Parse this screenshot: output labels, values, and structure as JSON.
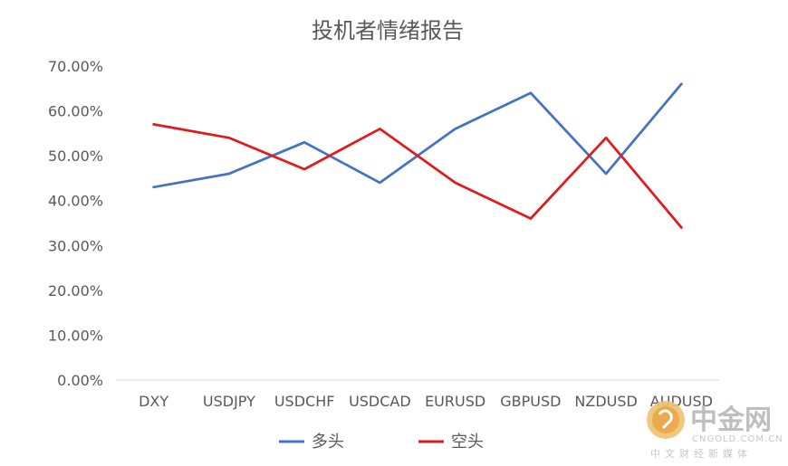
{
  "chart_data": {
    "type": "line",
    "title": "投机者情绪报告",
    "categories": [
      "DXY",
      "USDJPY",
      "USDCHF",
      "USDCAD",
      "EURUSD",
      "GBPUSD",
      "NZDUSD",
      "AUDUSD"
    ],
    "series": [
      {
        "name": "多头",
        "color": "#4472C4",
        "values": [
          43,
          46,
          53,
          44,
          56,
          64,
          46,
          66
        ]
      },
      {
        "name": "空头",
        "color": "#E31A1C",
        "values": [
          57,
          54,
          47,
          56,
          44,
          36,
          54,
          34
        ]
      }
    ],
    "yticks": [
      "0.00%",
      "10.00%",
      "20.00%",
      "30.00%",
      "40.00%",
      "50.00%",
      "60.00%",
      "70.00%"
    ],
    "ylim": [
      0,
      70
    ],
    "xlabel": "",
    "ylabel": "",
    "legend": "bottom"
  },
  "watermark": {
    "brand": "中金网",
    "domain": "CNGOLD.COM.CN",
    "tagline": "中文财经新媒体"
  }
}
